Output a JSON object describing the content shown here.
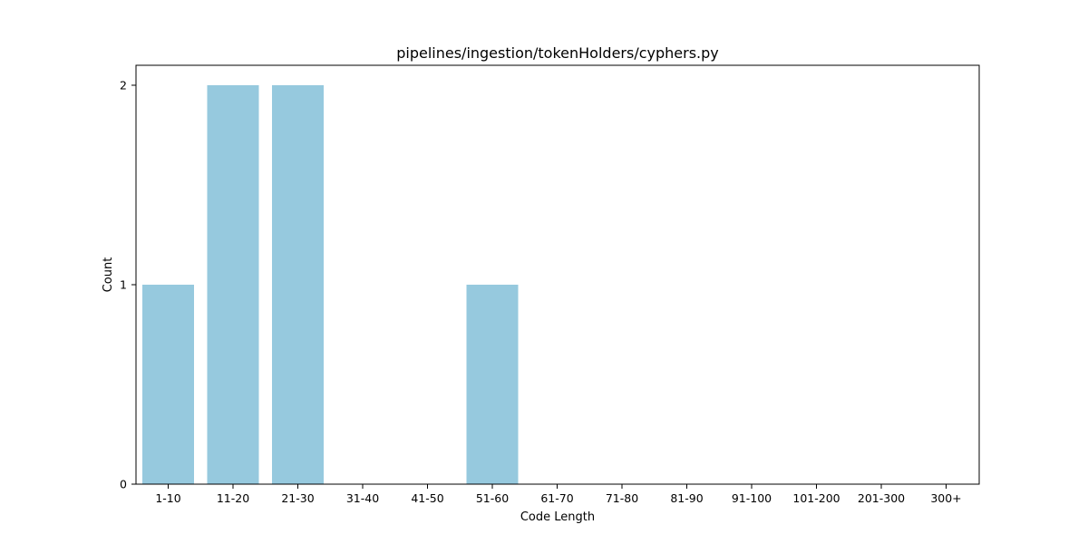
{
  "chart_data": {
    "type": "bar",
    "title": "pipelines/ingestion/tokenHolders/cyphers.py",
    "xlabel": "Code Length",
    "ylabel": "Count",
    "categories": [
      "1-10",
      "11-20",
      "21-30",
      "31-40",
      "41-50",
      "51-60",
      "61-70",
      "71-80",
      "81-90",
      "91-100",
      "101-200",
      "201-300",
      "300+"
    ],
    "values": [
      1,
      2,
      2,
      0,
      0,
      1,
      0,
      0,
      0,
      0,
      0,
      0,
      0
    ],
    "yticks": [
      "0",
      "1",
      "2"
    ],
    "ylim": [
      0,
      2.1
    ],
    "grid": false,
    "legend": "none",
    "bar_color": "#96c9de"
  }
}
